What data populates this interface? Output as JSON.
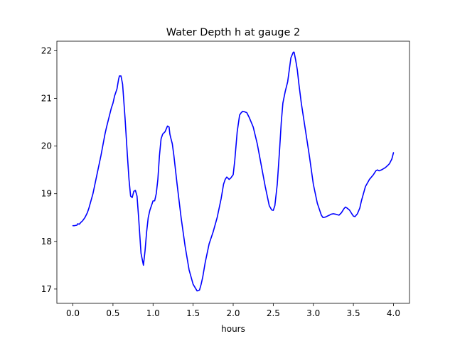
{
  "chart_data": {
    "type": "line",
    "title": "Water Depth h at gauge 2",
    "xlabel": "hours",
    "ylabel": "",
    "xlim": [
      -0.2,
      4.2
    ],
    "ylim": [
      16.7,
      22.2
    ],
    "xticks": [
      0.0,
      0.5,
      1.0,
      1.5,
      2.0,
      2.5,
      3.0,
      3.5,
      4.0
    ],
    "xtick_labels": [
      "0.0",
      "0.5",
      "1.0",
      "1.5",
      "2.0",
      "2.5",
      "3.0",
      "3.5",
      "4.0"
    ],
    "yticks": [
      17,
      18,
      19,
      20,
      21,
      22
    ],
    "ytick_labels": [
      "17",
      "18",
      "19",
      "20",
      "21",
      "22"
    ],
    "grid": false,
    "legend": "none",
    "series": [
      {
        "color": "#0000ff",
        "x": [
          0.0,
          0.02,
          0.05,
          0.06,
          0.08,
          0.1,
          0.12,
          0.15,
          0.18,
          0.2,
          0.25,
          0.3,
          0.35,
          0.4,
          0.42,
          0.45,
          0.48,
          0.5,
          0.52,
          0.55,
          0.57,
          0.58,
          0.6,
          0.62,
          0.65,
          0.68,
          0.7,
          0.72,
          0.74,
          0.76,
          0.78,
          0.8,
          0.82,
          0.85,
          0.88,
          0.9,
          0.92,
          0.94,
          0.96,
          0.98,
          1.0,
          1.02,
          1.04,
          1.06,
          1.08,
          1.1,
          1.12,
          1.15,
          1.18,
          1.2,
          1.21,
          1.22,
          1.24,
          1.26,
          1.28,
          1.3,
          1.35,
          1.4,
          1.45,
          1.5,
          1.55,
          1.58,
          1.6,
          1.62,
          1.65,
          1.7,
          1.75,
          1.8,
          1.85,
          1.88,
          1.9,
          1.92,
          1.95,
          1.97,
          2.0,
          2.02,
          2.05,
          2.08,
          2.1,
          2.12,
          2.14,
          2.17,
          2.2,
          2.25,
          2.3,
          2.35,
          2.4,
          2.45,
          2.48,
          2.5,
          2.52,
          2.55,
          2.58,
          2.6,
          2.62,
          2.65,
          2.68,
          2.7,
          2.72,
          2.75,
          2.76,
          2.78,
          2.8,
          2.82,
          2.85,
          2.9,
          2.95,
          3.0,
          3.05,
          3.1,
          3.12,
          3.15,
          3.2,
          3.22,
          3.25,
          3.28,
          3.3,
          3.32,
          3.35,
          3.38,
          3.4,
          3.42,
          3.45,
          3.48,
          3.5,
          3.52,
          3.55,
          3.58,
          3.6,
          3.65,
          3.7,
          3.75,
          3.78,
          3.8,
          3.82,
          3.85,
          3.88,
          3.9,
          3.92,
          3.95,
          3.98,
          4.0
        ],
        "y": [
          18.33,
          18.33,
          18.34,
          18.37,
          18.36,
          18.4,
          18.43,
          18.5,
          18.6,
          18.7,
          19.0,
          19.4,
          19.8,
          20.25,
          20.4,
          20.6,
          20.8,
          20.9,
          21.05,
          21.2,
          21.4,
          21.47,
          21.47,
          21.3,
          20.6,
          19.8,
          19.3,
          18.95,
          18.92,
          19.05,
          19.07,
          18.95,
          18.5,
          17.75,
          17.5,
          17.8,
          18.2,
          18.5,
          18.65,
          18.75,
          18.85,
          18.85,
          19.0,
          19.3,
          19.8,
          20.15,
          20.25,
          20.3,
          20.42,
          20.4,
          20.25,
          20.18,
          20.05,
          19.8,
          19.5,
          19.2,
          18.5,
          17.9,
          17.4,
          17.1,
          16.96,
          16.98,
          17.1,
          17.25,
          17.55,
          17.95,
          18.2,
          18.5,
          18.9,
          19.2,
          19.3,
          19.35,
          19.3,
          19.33,
          19.4,
          19.7,
          20.3,
          20.65,
          20.7,
          20.73,
          20.72,
          20.7,
          20.6,
          20.4,
          20.05,
          19.6,
          19.15,
          18.75,
          18.66,
          18.65,
          18.75,
          19.2,
          19.95,
          20.5,
          20.9,
          21.15,
          21.35,
          21.6,
          21.85,
          21.97,
          21.97,
          21.8,
          21.6,
          21.3,
          20.9,
          20.35,
          19.8,
          19.2,
          18.8,
          18.55,
          18.5,
          18.51,
          18.55,
          18.57,
          18.58,
          18.57,
          18.56,
          18.55,
          18.6,
          18.68,
          18.72,
          18.7,
          18.66,
          18.58,
          18.53,
          18.52,
          18.58,
          18.7,
          18.85,
          19.15,
          19.3,
          19.4,
          19.48,
          19.5,
          19.48,
          19.5,
          19.53,
          19.55,
          19.58,
          19.63,
          19.73,
          19.86
        ]
      }
    ]
  }
}
